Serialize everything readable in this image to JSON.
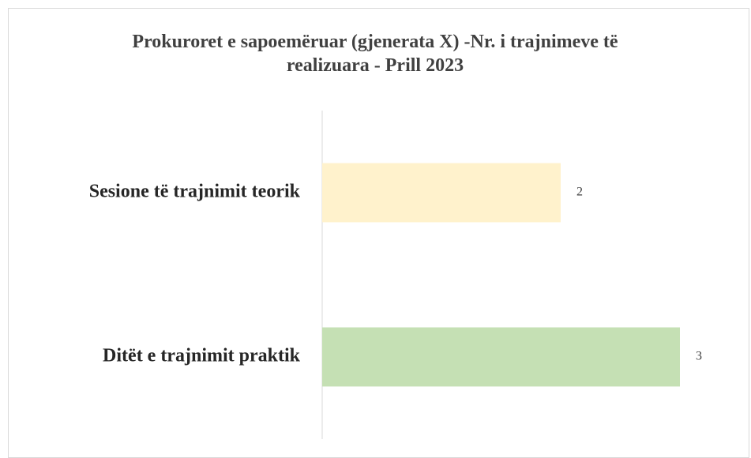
{
  "chart_data": {
    "type": "hbar",
    "title": "Prokuroret e sapoemëruar (gjenerata X) -Nr. i trajnimeve të realizuara - Prill 2023",
    "categories": [
      "Sesione të trajnimit teorik",
      "Ditët e trajnimit praktik"
    ],
    "values": [
      2,
      3
    ],
    "colors": [
      "#fff2cc",
      "#c5e0b4"
    ],
    "xlim": [
      0,
      3
    ]
  }
}
